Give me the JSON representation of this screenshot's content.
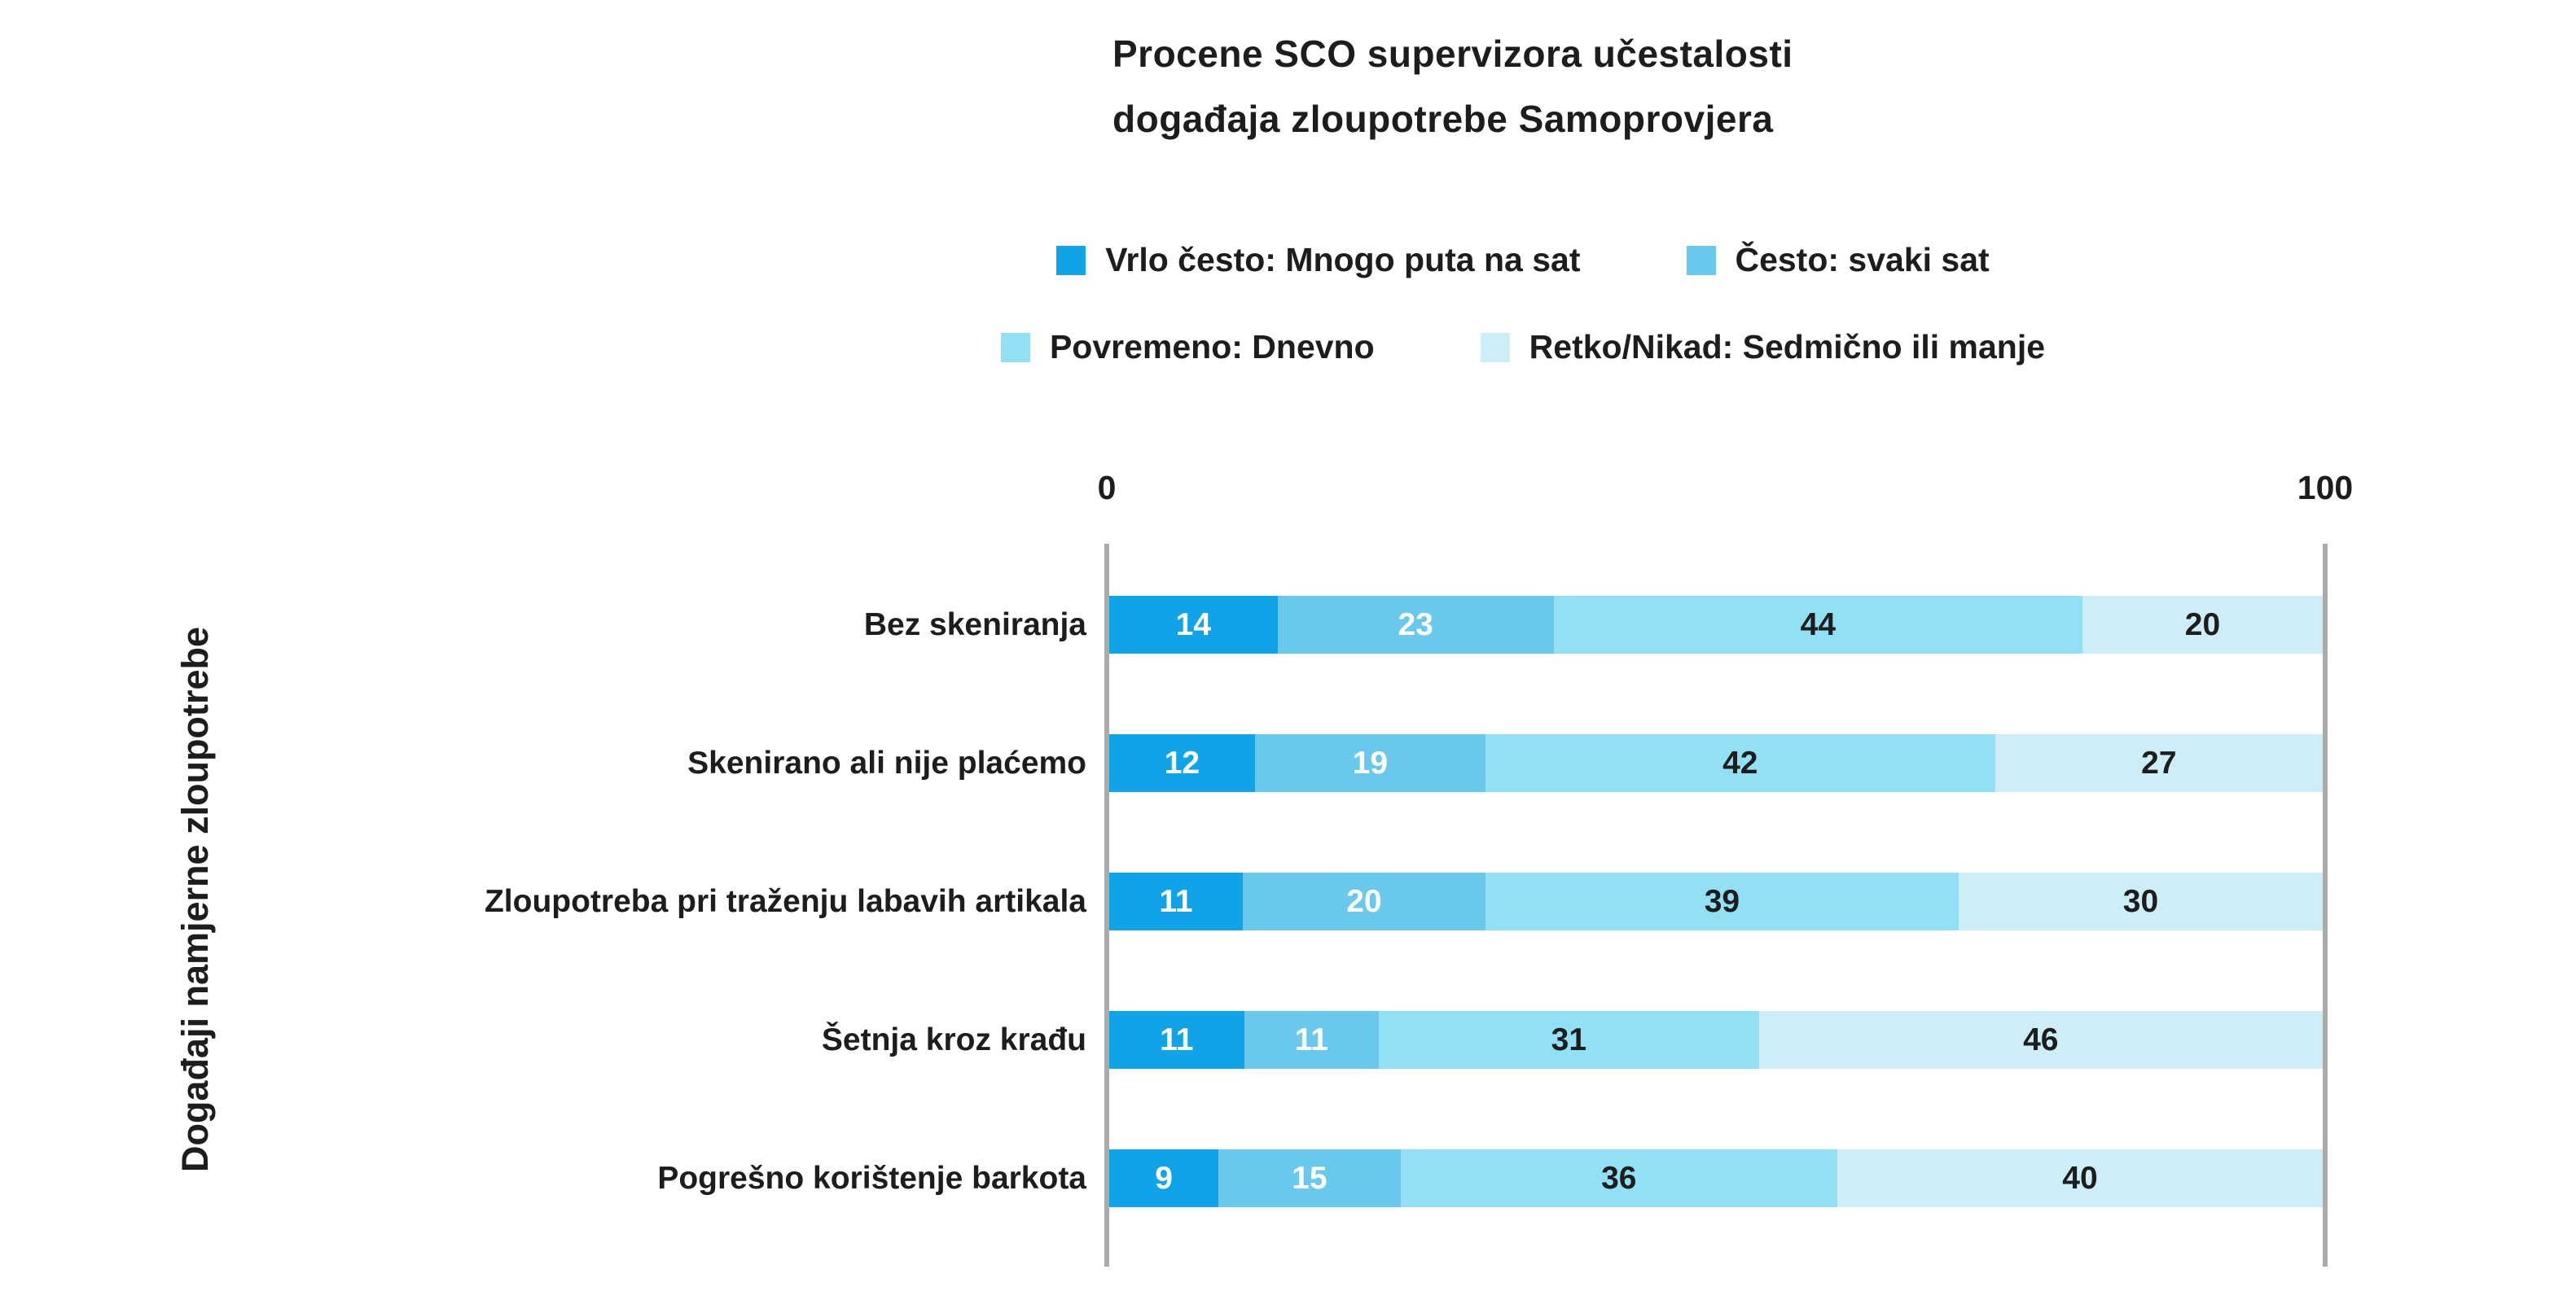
{
  "title": {
    "line1": "Procene SCO supervizora učestalosti",
    "line2": "događaja zloupotrebe Samoprovjera"
  },
  "x_axis": {
    "min_label": "0",
    "max_label": "100"
  },
  "y_axis_label": "Događaji namjerne zloupotrebe",
  "colors": {
    "axis_line": "#ababab",
    "text": "#1d1d1d",
    "background": "#ffffff"
  },
  "chart_data": {
    "type": "bar",
    "subtype": "horizontal-stacked-100pct",
    "title": "Procene SCO supervizora učestalosti događaja zloupotrebe Samoprovjera",
    "xlabel": "",
    "ylabel": "Događaji namjerne zloupotrebe",
    "xlim": [
      0,
      100
    ],
    "x_ticks": [
      "0",
      "100"
    ],
    "grid": false,
    "legend_position": "top-center",
    "value_labels": "inside-center",
    "categories": [
      "Bez skeniranja",
      "Skenirano ali nije plaćemo",
      "Zloupotreba pri traženju labavih artikala",
      "Šetnja kroz krađu",
      "Pogrešno korištenje barkota"
    ],
    "series": [
      {
        "name": "Vrlo često: Mnogo puta na sat",
        "color": "#11a3e7",
        "value_text_color": "#ffffff",
        "values": [
          14,
          12,
          11,
          11,
          9
        ]
      },
      {
        "name": "Često: svaki sat",
        "color": "#69c8eb",
        "value_text_color": "#ffffff",
        "values": [
          23,
          19,
          20,
          11,
          15
        ]
      },
      {
        "name": "Povremeno: Dnevno",
        "color": "#92e0f5",
        "value_text_color": "#1d1d1d",
        "values": [
          44,
          42,
          39,
          31,
          36
        ]
      },
      {
        "name": "Retko/Nikad: Sedmično ili manje",
        "color": "#cdedf7",
        "value_text_color": "#1d1d1d",
        "values": [
          20,
          27,
          30,
          46,
          40
        ]
      }
    ]
  }
}
